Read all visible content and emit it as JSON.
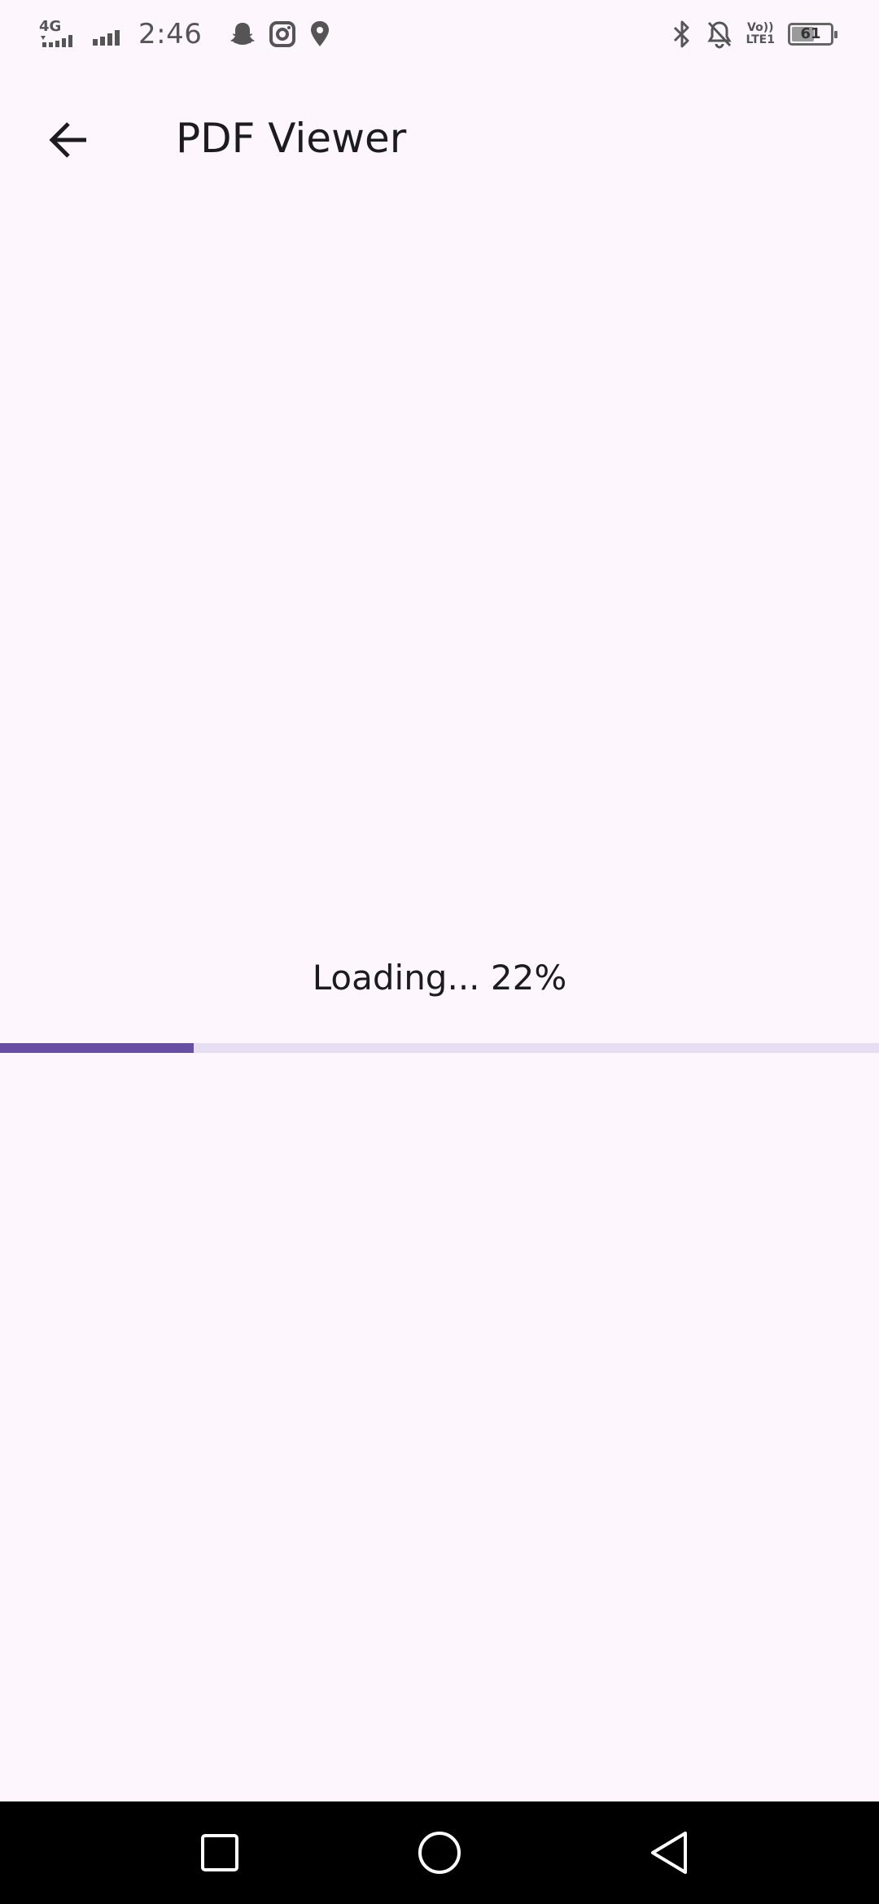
{
  "status_bar": {
    "network_label": "4G",
    "time": "2:46",
    "volte_top": "Vo))",
    "volte_bottom": "LTE1",
    "battery_level": "61",
    "battery_fraction": 0.61,
    "icons": [
      "signal-icon",
      "snapchat-icon",
      "instagram-icon",
      "location-icon",
      "bluetooth-icon",
      "bell-off-icon",
      "volte-icon",
      "battery-icon"
    ]
  },
  "app_bar": {
    "title": "PDF Viewer",
    "back_icon": "arrow-back-icon"
  },
  "loading": {
    "text": "Loading... 22%",
    "progress": 0.22,
    "colors": {
      "fill": "#6750a4",
      "track": "#e7def3"
    }
  },
  "nav_bar": {
    "icons": [
      "recents-square-icon",
      "home-circle-icon",
      "back-triangle-icon"
    ]
  },
  "colors": {
    "background": "#fdf7fd",
    "nav_background": "#000000"
  }
}
